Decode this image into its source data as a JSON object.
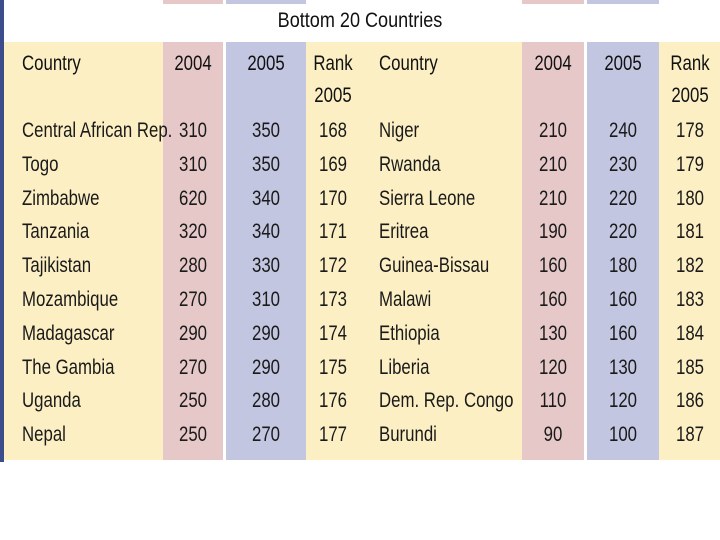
{
  "title": "Bottom 20 Countries",
  "headers": {
    "country": "Country",
    "y2004": "2004",
    "y2005": "2005",
    "rank_line1": "Rank",
    "rank_line2": "2005"
  },
  "colors": {
    "panel": "#fcefc4",
    "col_2004": "#e6c8c8",
    "col_2005": "#c2c6e0",
    "edge": "#3c4d8c"
  },
  "left_table": [
    {
      "country": "Central African Rep.",
      "y2004": "310",
      "y2005": "350",
      "rank": "168"
    },
    {
      "country": "Togo",
      "y2004": "310",
      "y2005": "350",
      "rank": "169"
    },
    {
      "country": "Zimbabwe",
      "y2004": "620",
      "y2005": "340",
      "rank": "170"
    },
    {
      "country": "Tanzania",
      "y2004": "320",
      "y2005": "340",
      "rank": "171"
    },
    {
      "country": "Tajikistan",
      "y2004": "280",
      "y2005": "330",
      "rank": "172"
    },
    {
      "country": "Mozambique",
      "y2004": "270",
      "y2005": "310",
      "rank": "173"
    },
    {
      "country": "Madagascar",
      "y2004": "290",
      "y2005": "290",
      "rank": "174"
    },
    {
      "country": "The Gambia",
      "y2004": "270",
      "y2005": "290",
      "rank": "175"
    },
    {
      "country": "Uganda",
      "y2004": "250",
      "y2005": "280",
      "rank": "176"
    },
    {
      "country": "Nepal",
      "y2004": "250",
      "y2005": "270",
      "rank": "177"
    }
  ],
  "right_table": [
    {
      "country": "Niger",
      "y2004": "210",
      "y2005": "240",
      "rank": "178"
    },
    {
      "country": "Rwanda",
      "y2004": "210",
      "y2005": "230",
      "rank": "179"
    },
    {
      "country": "Sierra Leone",
      "y2004": "210",
      "y2005": "220",
      "rank": "180"
    },
    {
      "country": "Eritrea",
      "y2004": "190",
      "y2005": "220",
      "rank": "181"
    },
    {
      "country": "Guinea-Bissau",
      "y2004": "160",
      "y2005": "180",
      "rank": "182"
    },
    {
      "country": "Malawi",
      "y2004": "160",
      "y2005": "160",
      "rank": "183"
    },
    {
      "country": "Ethiopia",
      "y2004": "130",
      "y2005": "160",
      "rank": "184"
    },
    {
      "country": "Liberia",
      "y2004": "120",
      "y2005": "130",
      "rank": "185"
    },
    {
      "country": "Dem. Rep. Congo",
      "y2004": "110",
      "y2005": "120",
      "rank": "186"
    },
    {
      "country": "Burundi",
      "y2004": "90",
      "y2005": "100",
      "rank": "187"
    }
  ]
}
